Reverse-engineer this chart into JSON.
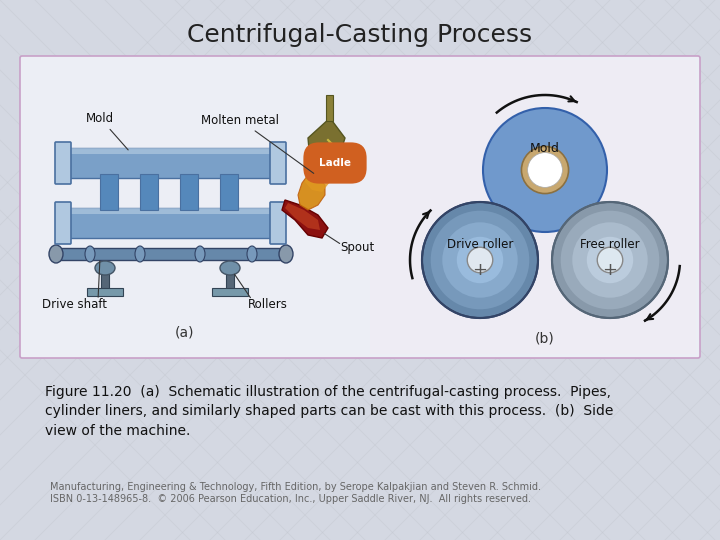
{
  "title": "Centrifugal-Casting Process",
  "title_fontsize": 18,
  "title_color": "#222222",
  "bg_color": "#d4d8e2",
  "panel_facecolor": "#eceef5",
  "panel_right_facecolor": "#f0eef8",
  "panel_border": "#d0b0d0",
  "caption_text": "Figure 11.20  (a)  Schematic illustration of the centrifugal-casting process.  Pipes,\ncylinder liners, and similarly shaped parts can be cast with this process.  (b)  Side\nview of the machine.",
  "caption_fontsize": 10,
  "footer_line1": "Manufacturing, Engineering & Technology, Fifth Edition, by Serope Kalpakjian and Steven R. Schmid.",
  "footer_line2": "ISBN 0-13-148965-8.  © 2006 Pearson Education, Inc., Upper Saddle River, NJ.  All rights reserved.",
  "footer_fontsize": 7,
  "footer_color": "#666666",
  "mold_blue": "#88aacc",
  "mold_blue_dark": "#4466aa",
  "mold_blue_mid": "#7799bb",
  "roller_gray": "#8899aa",
  "roller_gray_light": "#aabbcc",
  "roller_highlight": "#ccddee",
  "drive_roller_color": "#7799bb",
  "free_roller_color": "#99aabb",
  "mold_ring_color": "#7799cc",
  "ladle_color": "#7a7030",
  "spout_dark": "#8b2020",
  "spout_light": "#c05030",
  "molten_color": "#d4860a"
}
